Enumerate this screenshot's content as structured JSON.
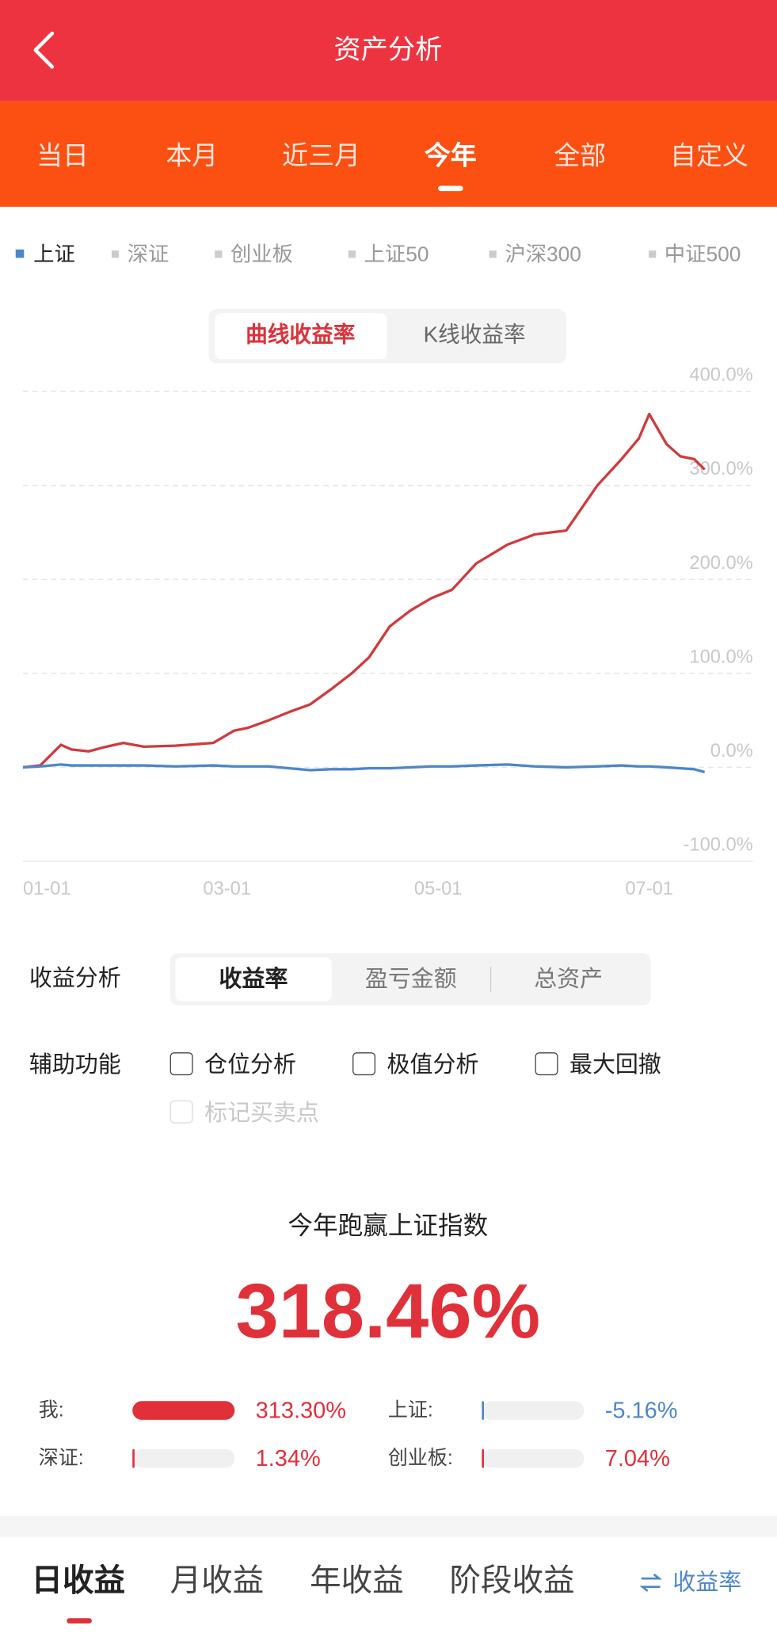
{
  "header": {
    "title": "资产分析"
  },
  "period_tabs": [
    "当日",
    "本月",
    "近三月",
    "今年",
    "全部",
    "自定义"
  ],
  "other_indices": [
    "深证",
    "创业板",
    "上证50",
    "沪深300",
    "中证500"
  ],
  "chart_toggle": [
    "曲线收益率",
    "K线收益率"
  ],
  "analysis": {
    "label": "收益分析",
    "options": [
      "收益率",
      "盈亏金额",
      "总资产"
    ]
  },
  "aux": {
    "label": "辅助功能",
    "options": [
      "仓位分析",
      "极值分析",
      "最大回撤",
      "标记买卖点"
    ]
  },
  "summary": {
    "title": "今年跑赢上证指数",
    "headline_value": "318.46%"
  },
  "bottom_tabs": [
    "日收益",
    "月收益",
    "年收益",
    "阶段收益"
  ],
  "bottom_switch": "收益率",
  "chart_data": [
    {
      "type": "line",
      "x": [
        "01-01",
        "01-06",
        "01-12",
        "01-15",
        "01-20",
        "01-24",
        "01-30",
        "02-05",
        "02-14",
        "02-25",
        "03-03",
        "03-07",
        "03-13",
        "03-19",
        "03-25",
        "03-31",
        "04-06",
        "04-11",
        "04-17",
        "04-23",
        "04-29",
        "05-05",
        "05-12",
        "05-21",
        "05-29",
        "06-07",
        "06-16",
        "06-23",
        "06-28",
        "07-01",
        "07-06",
        "07-10",
        "07-14",
        "07-17"
      ],
      "xlim": [
        "01-01",
        "07-31"
      ],
      "xticks": [
        "01-01",
        "03-01",
        "05-01",
        "07-01"
      ],
      "ylim": [
        -100,
        400
      ],
      "yticks": [
        {
          "value": -100,
          "label": "-100.0%"
        },
        {
          "value": 0,
          "label": "0.0%"
        },
        {
          "value": 100,
          "label": "100.0%"
        },
        {
          "value": 200,
          "label": "200.0%"
        },
        {
          "value": 300,
          "label": "300.0%"
        },
        {
          "value": 400,
          "label": "400.0%"
        }
      ],
      "grid": true,
      "series": [
        {
          "color": "#d03a3c",
          "values": [
            0,
            2,
            24,
            19,
            17,
            21,
            26,
            22,
            23,
            26,
            39,
            42,
            50,
            59,
            67,
            83,
            100,
            117,
            150,
            167,
            180,
            189,
            217,
            237,
            248,
            252,
            300,
            328,
            350,
            376,
            344,
            331,
            328,
            317
          ]
        },
        {
          "name": "上证",
          "color": "#4d86c8",
          "values": [
            0,
            1,
            3,
            2,
            2,
            2,
            2,
            2,
            1,
            2,
            1,
            1,
            1,
            -1,
            -3,
            -2,
            -2,
            -1,
            -1,
            0,
            1,
            1,
            2,
            3,
            1,
            0,
            1,
            2,
            1,
            1,
            0,
            -1,
            -2,
            -5
          ]
        }
      ]
    },
    {
      "type": "bar",
      "categories": [
        "我:",
        "上证:",
        "深证:",
        "创业板:"
      ],
      "values": [
        313.3,
        -5.16,
        1.34,
        7.04
      ],
      "value_labels": [
        "313.30%",
        "-5.16%",
        "1.34%",
        "7.04%"
      ],
      "colors": [
        "#e0303a",
        "#4d86c8",
        "#e0303a",
        "#e0303a"
      ]
    }
  ]
}
